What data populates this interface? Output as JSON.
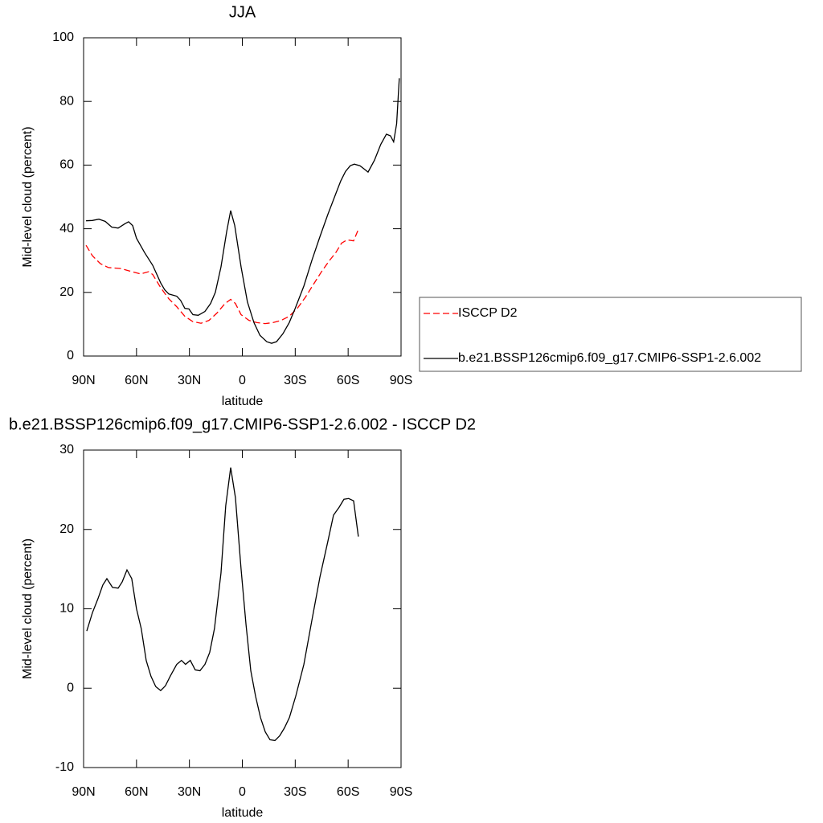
{
  "chart_data": [
    {
      "type": "line",
      "title": "JJA",
      "xlabel": "latitude",
      "ylabel": "Mid-level cloud (percent)",
      "xlim": [
        90,
        -90
      ],
      "xticks": [
        {
          "value": 90,
          "label": "90N"
        },
        {
          "value": 60,
          "label": "60N"
        },
        {
          "value": 30,
          "label": "30N"
        },
        0,
        {
          "value": -30,
          "label": "30S"
        },
        {
          "value": -60,
          "label": "60S"
        },
        {
          "value": -90,
          "label": "90S"
        }
      ],
      "ylim": [
        0,
        100
      ],
      "yticks": [
        0,
        20,
        40,
        60,
        80,
        100
      ],
      "legend": "right",
      "series": [
        {
          "name": "ISCCP D2",
          "color": "#ff0000",
          "line_style": "dashed",
          "x": [
            88.6,
            85,
            80.4,
            75.9,
            69,
            64.5,
            57.7,
            53.1,
            50.8,
            46.3,
            41.7,
            37.2,
            32.6,
            28,
            23.4,
            18.9,
            14.4,
            9.8,
            6.6,
            3.9,
            0.7,
            -3.8,
            -8.3,
            -12.9,
            -17.4,
            -22,
            -26.6,
            -31.2,
            -35.8,
            -40.3,
            -44.9,
            -49.4,
            -53,
            -56.3,
            -59.4,
            -63.1,
            -65.8
          ],
          "values": [
            34.8,
            31.5,
            29,
            27.8,
            27.5,
            26.8,
            25.8,
            26.5,
            25.6,
            21.5,
            18,
            15.5,
            12.5,
            10.8,
            10.3,
            11.2,
            13.5,
            16.5,
            17.8,
            16.5,
            13,
            11.2,
            10.5,
            10.2,
            10.5,
            11.2,
            12.5,
            15,
            18.5,
            22.5,
            26.5,
            30,
            32.5,
            35.5,
            36.5,
            36.2,
            39.8
          ]
        },
        {
          "name": "b.e21.BSSP126cmip6.f09_g17.CMIP6-SSP1-2.6.002",
          "color": "#000000",
          "line_style": "solid",
          "x": [
            88.6,
            85,
            81.3,
            77.7,
            74,
            70.4,
            66.8,
            64.5,
            62.2,
            60,
            55.4,
            50.8,
            46.3,
            44,
            41.7,
            37.2,
            35,
            32.6,
            30.3,
            28,
            25,
            21.2,
            18,
            15.3,
            12.1,
            8.9,
            6.6,
            4.3,
            0.7,
            -2.9,
            -6.6,
            -10,
            -13.9,
            -16.6,
            -19.4,
            -23,
            -26.6,
            -30,
            -34.9,
            -39.4,
            -44,
            -48.5,
            -53,
            -55.8,
            -58.5,
            -61.2,
            -63.5,
            -66.7,
            -69,
            -71.3,
            -74.9,
            -78.5,
            -81.7,
            -84,
            -85.8,
            -87.5,
            -89
          ],
          "values": [
            42.5,
            42.6,
            43,
            42.3,
            40.5,
            40.2,
            41.5,
            42.2,
            41,
            37,
            32.5,
            28.5,
            23,
            20.8,
            19.5,
            18.8,
            17.5,
            15,
            14.8,
            13,
            12.8,
            14,
            16.5,
            20,
            28,
            39,
            45.7,
            41,
            28,
            17,
            10.5,
            6.5,
            4.5,
            4,
            4.5,
            7,
            10.5,
            15,
            22,
            30,
            37.5,
            44.5,
            51,
            55,
            58,
            59.8,
            60.3,
            59.8,
            58.8,
            57.8,
            61.5,
            66.5,
            69.7,
            69.2,
            67.3,
            73,
            87.3
          ]
        }
      ]
    },
    {
      "type": "line",
      "title": "b.e21.BSSP126cmip6.f09_g17.CMIP6-SSP1-2.6.002 - ISCCP D2",
      "xlabel": "latitude",
      "ylabel": "Mid-level cloud (percent)",
      "xlim": [
        90,
        -90
      ],
      "xticks": [
        {
          "value": 90,
          "label": "90N"
        },
        {
          "value": 60,
          "label": "60N"
        },
        {
          "value": 30,
          "label": "30N"
        },
        0,
        {
          "value": -30,
          "label": "30S"
        },
        {
          "value": -60,
          "label": "60S"
        },
        {
          "value": -90,
          "label": "90S"
        }
      ],
      "ylim": [
        -10,
        30
      ],
      "yticks": [
        -10,
        0,
        10,
        20,
        30
      ],
      "series": [
        {
          "color": "#000000",
          "line_style": "solid",
          "x": [
            88.2,
            85,
            81.8,
            79.1,
            76.8,
            73.6,
            70.4,
            68.1,
            65.4,
            62.7,
            60,
            57.3,
            54.5,
            51.8,
            49.1,
            46.3,
            43.6,
            40.9,
            37.2,
            34.5,
            32.2,
            29.5,
            26.7,
            24,
            21.2,
            18.5,
            15.8,
            12.1,
            9.4,
            6.6,
            3.9,
            0.7,
            -2.1,
            -4.8,
            -7.5,
            -10.3,
            -13,
            -15.7,
            -18.5,
            -21.2,
            -23.9,
            -26.7,
            -30.3,
            -34.9,
            -39.4,
            -44,
            -48.5,
            -51.7,
            -54.9,
            -57.6,
            -60.3,
            -63.1,
            -65.8
          ],
          "values": [
            7.2,
            9.5,
            11.3,
            13,
            13.8,
            12.7,
            12.6,
            13.4,
            14.9,
            13.8,
            10,
            7.5,
            3.5,
            1.5,
            0.2,
            -0.3,
            0.3,
            1.5,
            3,
            3.5,
            3,
            3.5,
            2.3,
            2.2,
            3,
            4.5,
            7.5,
            14.5,
            23,
            27.8,
            24,
            15,
            8,
            2.2,
            -1,
            -3.7,
            -5.5,
            -6.5,
            -6.6,
            -6,
            -5,
            -3.7,
            -1,
            3,
            8.5,
            14,
            18.5,
            21.8,
            22.8,
            23.8,
            23.9,
            23.6,
            19.1
          ]
        }
      ]
    }
  ]
}
